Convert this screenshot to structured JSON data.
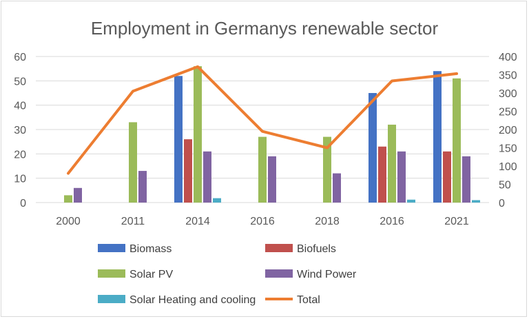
{
  "chart_data": {
    "type": "bar",
    "title": "Employment in Germanys renewable sector",
    "categories": [
      "2000",
      "2011",
      "2014",
      "2016",
      "2018",
      "2016",
      "2021"
    ],
    "y_left": {
      "min": 0,
      "max": 60,
      "ticks": [
        "0",
        "10",
        "20",
        "30",
        "40",
        "50",
        "60"
      ]
    },
    "y_right": {
      "min": 0,
      "max": 400,
      "ticks": [
        "0",
        "50",
        "100",
        "150",
        "200",
        "250",
        "300",
        "350",
        "400"
      ]
    },
    "grid": true,
    "legend_position": "bottom",
    "series": [
      {
        "name": "Biomass",
        "color": "#4472c4",
        "axis": "left",
        "type": "bar",
        "values": [
          0,
          0,
          52,
          0,
          0,
          45,
          54
        ]
      },
      {
        "name": "Biofuels",
        "color": "#c0504d",
        "axis": "left",
        "type": "bar",
        "values": [
          0,
          0,
          26,
          0,
          0,
          23,
          21
        ]
      },
      {
        "name": "Solar PV",
        "color": "#9bbb59",
        "axis": "left",
        "type": "bar",
        "values": [
          3,
          33,
          56,
          27,
          27,
          32,
          51
        ]
      },
      {
        "name": "Wind Power",
        "color": "#8064a2",
        "axis": "left",
        "type": "bar",
        "values": [
          6,
          13,
          21,
          19,
          12,
          21,
          19
        ]
      },
      {
        "name": "Solar Heating and cooling",
        "color": "#4bacc6",
        "axis": "left",
        "type": "bar",
        "values": [
          0,
          0,
          1.8,
          0,
          0,
          1.2,
          1
        ]
      },
      {
        "name": "Total",
        "color": "#ed7d31",
        "axis": "right",
        "type": "line",
        "values": [
          80,
          305,
          372,
          195,
          150,
          333,
          353
        ]
      }
    ]
  }
}
